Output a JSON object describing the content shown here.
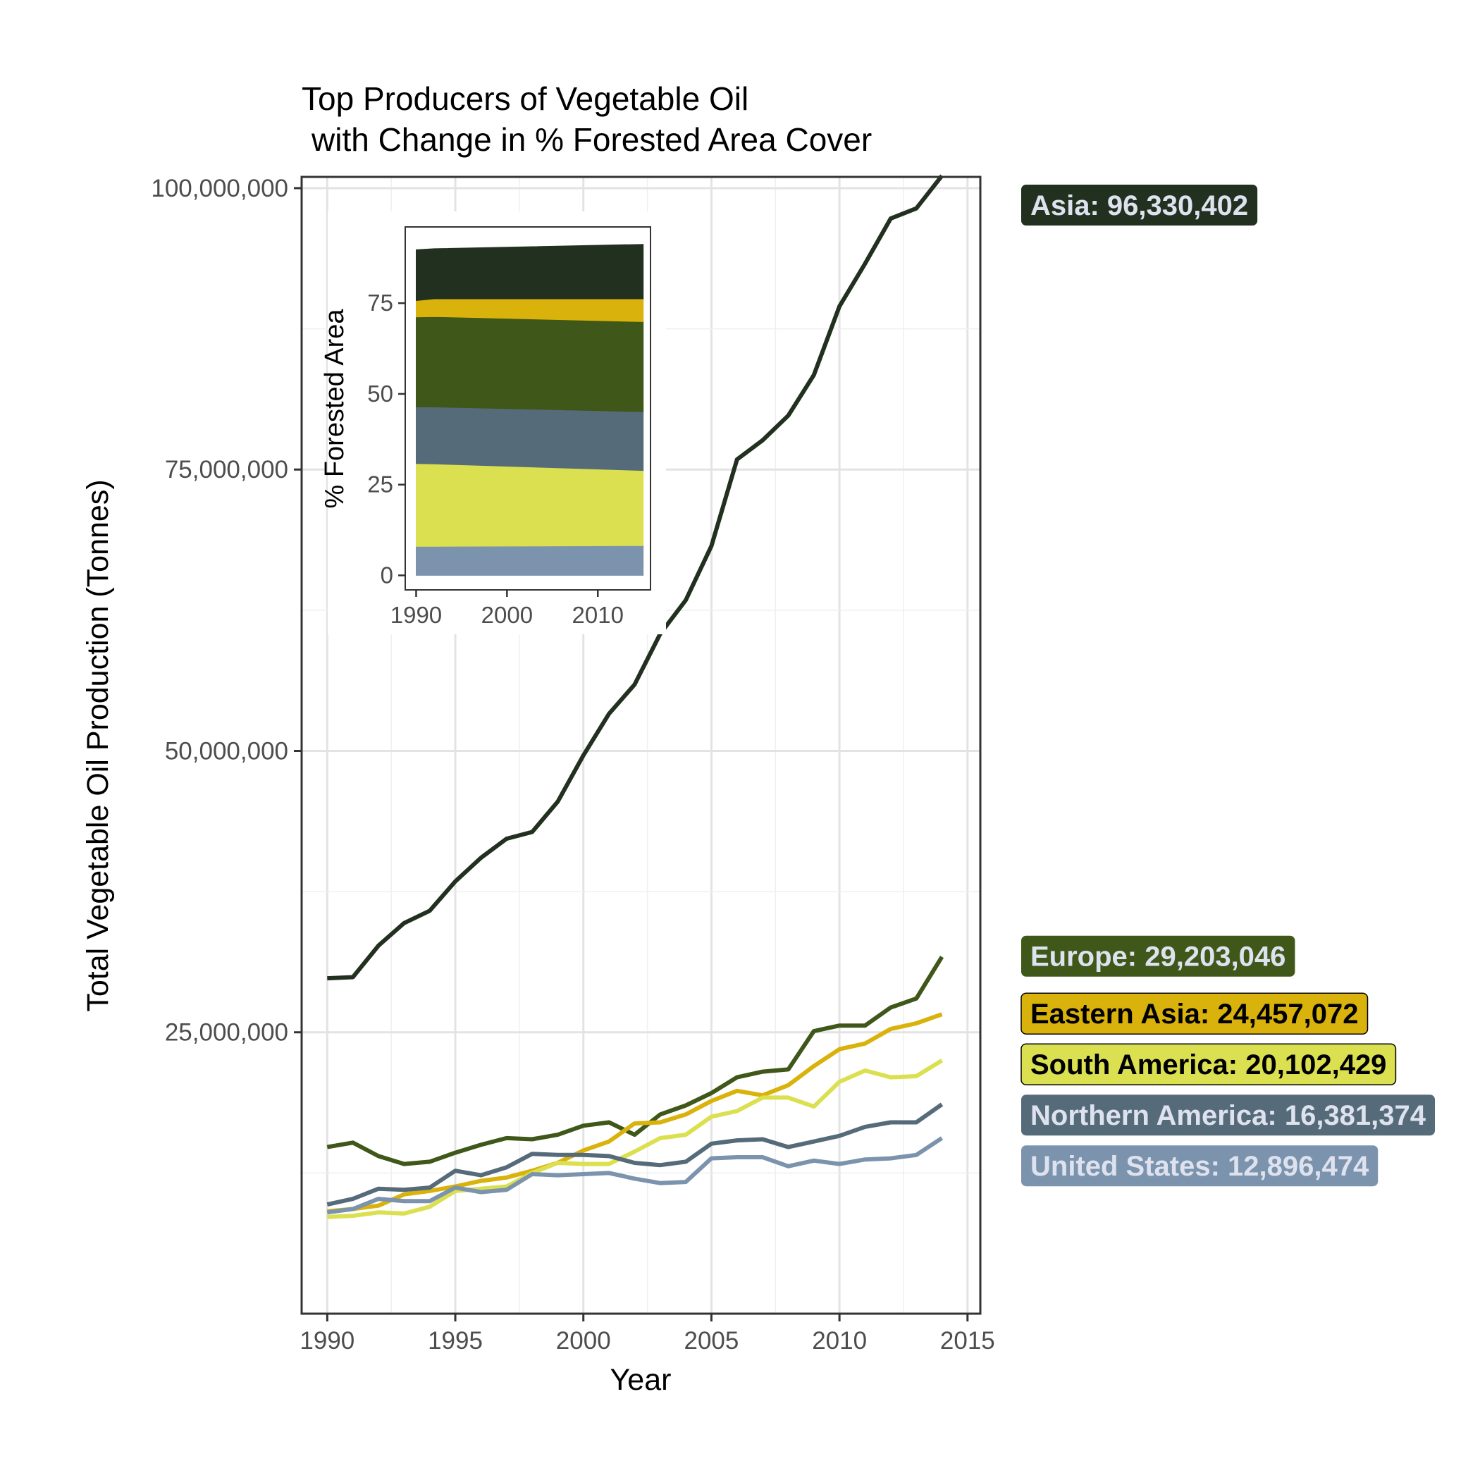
{
  "chart_data": [
    {
      "type": "line",
      "title_line1": "Top Producers of Vegetable Oil",
      "title_line2": "with Change in % Forested Area Cover",
      "xlabel": "Year",
      "ylabel": "Total Vegetable Oil Production (Tonnes)",
      "xlim": [
        1989,
        2015.5
      ],
      "ylim": [
        0,
        101000000
      ],
      "x_ticks": [
        1990,
        1995,
        2000,
        2005,
        2010,
        2015
      ],
      "x_tick_labels": [
        "1990",
        "1995",
        "2000",
        "2005",
        "2010",
        "2015"
      ],
      "y_ticks": [
        25000000,
        50000000,
        75000000,
        100000000
      ],
      "y_tick_labels": [
        "25,000,000",
        "50,000,000",
        "75,000,000",
        "100,000,000"
      ],
      "grid": true,
      "x": [
        1990,
        1991,
        1992,
        1993,
        1994,
        1995,
        1996,
        1997,
        1998,
        1999,
        2000,
        2001,
        2002,
        2003,
        2004,
        2005,
        2006,
        2007,
        2008,
        2009,
        2010,
        2011,
        2012,
        2013,
        2014
      ],
      "series": [
        {
          "key": "asia",
          "color": "#22301f",
          "label": "Asia: 96,330,402",
          "label_text_color": "#dde2ee",
          "values": [
            29800000,
            29900000,
            32700000,
            34700000,
            35800000,
            38400000,
            40500000,
            42200000,
            42800000,
            45500000,
            49600000,
            53300000,
            55900000,
            60400000,
            63400000,
            68200000,
            75900000,
            77600000,
            79800000,
            83400000,
            89500000,
            93300000,
            97300000,
            98200000,
            101100000
          ]
        },
        {
          "key": "europe",
          "color": "#3f5719",
          "label": "Europe: 29,203,046",
          "label_text_color": "#dde2ee",
          "values": [
            14800000,
            15200000,
            14000000,
            13300000,
            13500000,
            14300000,
            15000000,
            15600000,
            15500000,
            15900000,
            16700000,
            17000000,
            15900000,
            17700000,
            18500000,
            19600000,
            21000000,
            21500000,
            21700000,
            25100000,
            25600000,
            25600000,
            27200000,
            28000000,
            31700000
          ]
        },
        {
          "key": "eastern-asia",
          "color": "#d9b20b",
          "label": "Eastern Asia: 24,457,072",
          "label_text_color": "#000000",
          "values": [
            9100000,
            9300000,
            9600000,
            10600000,
            10900000,
            11300000,
            11800000,
            12100000,
            12700000,
            13400000,
            14500000,
            15300000,
            16900000,
            17000000,
            17700000,
            18900000,
            19800000,
            19400000,
            20300000,
            22000000,
            23500000,
            24000000,
            25300000,
            25800000,
            26600000
          ]
        },
        {
          "key": "south-america",
          "color": "#dbe050",
          "label": "South America: 20,102,429",
          "label_text_color": "#000000",
          "values": [
            8600000,
            8700000,
            9000000,
            8900000,
            9500000,
            10900000,
            11100000,
            11300000,
            12500000,
            13400000,
            13300000,
            13300000,
            14400000,
            15600000,
            15900000,
            17500000,
            18000000,
            19200000,
            19200000,
            18400000,
            20600000,
            21600000,
            21000000,
            21100000,
            22500000
          ]
        },
        {
          "key": "northern-america",
          "color": "#566b7a",
          "label": "Northern America: 16,381,374",
          "label_text_color": "#dde2ee",
          "values": [
            9700000,
            10200000,
            11100000,
            11000000,
            11200000,
            12700000,
            12300000,
            13000000,
            14200000,
            14100000,
            14100000,
            14000000,
            13400000,
            13200000,
            13500000,
            15100000,
            15400000,
            15500000,
            14800000,
            15300000,
            15800000,
            16600000,
            17000000,
            17000000,
            18600000
          ]
        },
        {
          "key": "united-states",
          "color": "#7c93ad",
          "label": "United States: 12,896,474",
          "label_text_color": "#dde2ee",
          "values": [
            9000000,
            9300000,
            10200000,
            10000000,
            10000000,
            11200000,
            10800000,
            11000000,
            12400000,
            12300000,
            12400000,
            12500000,
            12000000,
            11600000,
            11700000,
            13800000,
            13900000,
            13900000,
            13100000,
            13600000,
            13300000,
            13700000,
            13800000,
            14100000,
            15600000
          ]
        }
      ]
    },
    {
      "type": "area",
      "ylabel": "% Forested Area",
      "xlim": [
        1988.8,
        2015.8
      ],
      "ylim": [
        -4,
        96
      ],
      "x_ticks": [
        1990,
        2000,
        2010
      ],
      "x_tick_labels": [
        "1990",
        "2000",
        "2010"
      ],
      "y_ticks": [
        0,
        25,
        50,
        75
      ],
      "y_tick_labels": [
        "0",
        "25",
        "50",
        "75"
      ],
      "x": [
        1990,
        1992,
        2015
      ],
      "stacked": true,
      "series": [
        {
          "key": "asia",
          "color": "#22301f",
          "values": [
            14,
            13.8,
            15
          ]
        },
        {
          "key": "eastern-asia",
          "color": "#d9b20b",
          "values": [
            4.5,
            4.9,
            6.3
          ]
        },
        {
          "key": "europe",
          "color": "#3f5719",
          "values": [
            24.8,
            24.9,
            24.8
          ]
        },
        {
          "key": "northern-america",
          "color": "#566b7a",
          "values": [
            15.6,
            15.7,
            16.2
          ]
        },
        {
          "key": "south-america",
          "color": "#dbe050",
          "values": [
            22.8,
            22.7,
            20.7
          ]
        },
        {
          "key": "united-states",
          "color": "#7c93ad",
          "values": [
            8,
            8,
            8.2
          ]
        }
      ]
    }
  ]
}
